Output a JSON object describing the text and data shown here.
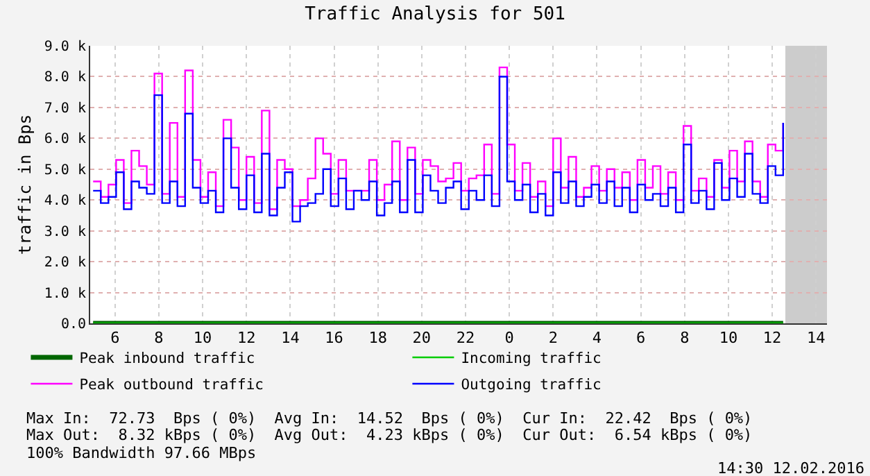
{
  "chart_data": {
    "type": "step",
    "title": "Traffic Analysis for 501",
    "ylabel": "traffic in Bps",
    "xlim": [
      "2016-02-11T04:52",
      "2016-02-12T14:30"
    ],
    "xticks": [
      {
        "value": "2016-02-11T06:00",
        "label": "6"
      },
      {
        "value": "2016-02-11T08:00",
        "label": "8"
      },
      {
        "value": "2016-02-11T10:00",
        "label": "10"
      },
      {
        "value": "2016-02-11T12:00",
        "label": "12"
      },
      {
        "value": "2016-02-11T14:00",
        "label": "14"
      },
      {
        "value": "2016-02-11T16:00",
        "label": "16"
      },
      {
        "value": "2016-02-11T18:00",
        "label": "18"
      },
      {
        "value": "2016-02-11T20:00",
        "label": "20"
      },
      {
        "value": "2016-02-11T22:00",
        "label": "22"
      },
      {
        "value": "2016-02-12T00:00",
        "label": "0"
      },
      {
        "value": "2016-02-12T02:00",
        "label": "2"
      },
      {
        "value": "2016-02-12T04:00",
        "label": "4"
      },
      {
        "value": "2016-02-12T06:00",
        "label": "6"
      },
      {
        "value": "2016-02-12T08:00",
        "label": "8"
      },
      {
        "value": "2016-02-12T10:00",
        "label": "10"
      },
      {
        "value": "2016-02-12T12:00",
        "label": "12"
      },
      {
        "value": "2016-02-12T14:00",
        "label": "14"
      }
    ],
    "ylim": [
      0,
      9000
    ],
    "yticks": [
      {
        "value": 0,
        "label": "0.0"
      },
      {
        "value": 1000,
        "label": "1.0 k"
      },
      {
        "value": 2000,
        "label": "2.0 k"
      },
      {
        "value": 3000,
        "label": "3.0 k"
      },
      {
        "value": 4000,
        "label": "4.0 k"
      },
      {
        "value": 5000,
        "label": "5.0 k"
      },
      {
        "value": 6000,
        "label": "6.0 k"
      },
      {
        "value": 7000,
        "label": "7.0 k"
      },
      {
        "value": 8000,
        "label": "8.0 k"
      },
      {
        "value": 9000,
        "label": "9.0 k"
      }
    ],
    "grid": true,
    "legend": "bottom",
    "bands": [
      {
        "axis": "x",
        "from": "2016-02-12T12:36",
        "to": "2016-02-12T14:30",
        "color": "#cccccc"
      }
    ],
    "x": [
      "2016-02-11T05:00",
      "2016-02-11T05:21",
      "2016-02-11T05:42",
      "2016-02-11T06:03",
      "2016-02-11T06:24",
      "2016-02-11T06:45",
      "2016-02-11T07:06",
      "2016-02-11T07:27",
      "2016-02-11T07:48",
      "2016-02-11T08:09",
      "2016-02-11T08:30",
      "2016-02-11T08:51",
      "2016-02-11T09:12",
      "2016-02-11T09:33",
      "2016-02-11T09:54",
      "2016-02-11T10:15",
      "2016-02-11T10:36",
      "2016-02-11T10:57",
      "2016-02-11T11:18",
      "2016-02-11T11:39",
      "2016-02-11T12:00",
      "2016-02-11T12:21",
      "2016-02-11T12:42",
      "2016-02-11T13:03",
      "2016-02-11T13:24",
      "2016-02-11T13:45",
      "2016-02-11T14:06",
      "2016-02-11T14:27",
      "2016-02-11T14:48",
      "2016-02-11T15:09",
      "2016-02-11T15:30",
      "2016-02-11T15:51",
      "2016-02-11T16:12",
      "2016-02-11T16:33",
      "2016-02-11T16:54",
      "2016-02-11T17:15",
      "2016-02-11T17:36",
      "2016-02-11T17:57",
      "2016-02-11T18:18",
      "2016-02-11T18:39",
      "2016-02-11T19:00",
      "2016-02-11T19:21",
      "2016-02-11T19:42",
      "2016-02-11T20:03",
      "2016-02-11T20:24",
      "2016-02-11T20:45",
      "2016-02-11T21:06",
      "2016-02-11T21:27",
      "2016-02-11T21:48",
      "2016-02-11T22:09",
      "2016-02-11T22:30",
      "2016-02-11T22:51",
      "2016-02-11T23:12",
      "2016-02-11T23:33",
      "2016-02-11T23:54",
      "2016-02-12T00:15",
      "2016-02-12T00:36",
      "2016-02-12T00:57",
      "2016-02-12T01:18",
      "2016-02-12T01:39",
      "2016-02-12T02:00",
      "2016-02-12T02:21",
      "2016-02-12T02:42",
      "2016-02-12T03:03",
      "2016-02-12T03:24",
      "2016-02-12T03:45",
      "2016-02-12T04:06",
      "2016-02-12T04:27",
      "2016-02-12T04:48",
      "2016-02-12T05:09",
      "2016-02-12T05:30",
      "2016-02-12T05:51",
      "2016-02-12T06:12",
      "2016-02-12T06:33",
      "2016-02-12T06:54",
      "2016-02-12T07:15",
      "2016-02-12T07:36",
      "2016-02-12T07:57",
      "2016-02-12T08:18",
      "2016-02-12T08:39",
      "2016-02-12T09:00",
      "2016-02-12T09:21",
      "2016-02-12T09:42",
      "2016-02-12T10:03",
      "2016-02-12T10:24",
      "2016-02-12T10:45",
      "2016-02-12T11:06",
      "2016-02-12T11:27",
      "2016-02-12T11:48",
      "2016-02-12T12:09",
      "2016-02-12T12:30"
    ],
    "series": [
      {
        "name": "Peak inbound traffic",
        "color": "#006600",
        "x": [
          "2016-02-11T05:00",
          "2016-02-12T12:30"
        ],
        "values": [
          0,
          0
        ]
      },
      {
        "name": "Incoming traffic",
        "color": "#00cc00",
        "x": [
          "2016-02-11T05:00",
          "2016-02-12T12:30"
        ],
        "values": [
          0,
          0
        ]
      },
      {
        "name": "Peak outbound traffic",
        "color": "#ff00ff",
        "values": [
          4600,
          4100,
          4500,
          5300,
          3900,
          5600,
          5100,
          4500,
          8100,
          4200,
          6500,
          4100,
          8200,
          5300,
          4100,
          4900,
          3800,
          6600,
          5700,
          4000,
          5400,
          3900,
          6900,
          3700,
          5300,
          5000,
          3800,
          4000,
          4700,
          6000,
          5500,
          4200,
          5300,
          4300,
          4300,
          4300,
          5300,
          4000,
          4500,
          5900,
          4000,
          5700,
          4200,
          5300,
          5100,
          4600,
          4700,
          5200,
          4300,
          4700,
          4800,
          5800,
          4200,
          8300,
          5800,
          4300,
          5200,
          4100,
          4600,
          3800,
          6000,
          4400,
          5400,
          4100,
          4400,
          5100,
          4300,
          5000,
          4400,
          4900,
          4000,
          5300,
          4400,
          5100,
          4200,
          4900,
          4000,
          6400,
          4300,
          4700,
          4100,
          5300,
          4400,
          5600,
          4600,
          5900,
          4600,
          4100,
          5800,
          5600,
          6500
        ]
      },
      {
        "name": "Outgoing traffic",
        "color": "#0000ff",
        "values": [
          4300,
          3900,
          4100,
          4900,
          3700,
          4600,
          4400,
          4200,
          7400,
          3900,
          4600,
          3800,
          6800,
          4400,
          3900,
          4300,
          3600,
          6000,
          4400,
          3700,
          4800,
          3600,
          5500,
          3500,
          4400,
          4900,
          3300,
          3800,
          3900,
          4200,
          5000,
          3800,
          4700,
          3700,
          4300,
          4000,
          4600,
          3500,
          3900,
          4600,
          3600,
          5300,
          3600,
          4800,
          4300,
          3900,
          4400,
          4600,
          3700,
          4300,
          4000,
          4800,
          3800,
          8000,
          4600,
          4000,
          4500,
          3600,
          4200,
          3500,
          4900,
          3900,
          4600,
          3800,
          4100,
          4500,
          3900,
          4600,
          3800,
          4400,
          3600,
          4500,
          4000,
          4200,
          3800,
          4400,
          3600,
          5800,
          3900,
          4300,
          3700,
          5200,
          4000,
          4700,
          4100,
          5500,
          4200,
          3900,
          5100,
          4800,
          6500
        ]
      }
    ],
    "annotations": [
      "Max In:  72.73  Bps ( 0%)  Avg In:  14.52  Bps ( 0%)  Cur In:  22.42  Bps ( 0%)",
      "Max Out:  8.32 kBps ( 0%)  Avg Out:  4.23 kBps ( 0%)  Cur Out:  6.54 kBps ( 0%)",
      "100% Bandwidth 97.66 MBps",
      "14:30 12.02.2016"
    ]
  }
}
